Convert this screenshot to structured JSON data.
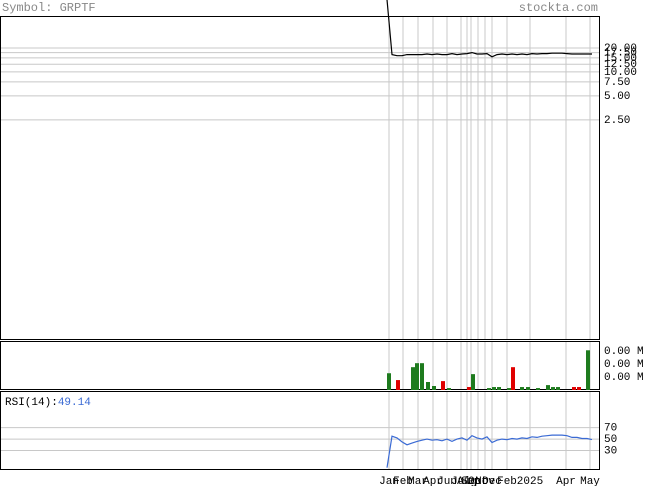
{
  "header": {
    "symbol": "Symbol: GRPTF",
    "site": "stockta.com"
  },
  "chart_data": [
    {
      "type": "line",
      "log_scale": true,
      "color": "#000000",
      "grid": true,
      "x": [
        77.4,
        78.4,
        79.4,
        80.4,
        81.4,
        82.4,
        83.4,
        84.4,
        85.4,
        86.4,
        87.4,
        88.4,
        89.4,
        90.4,
        91.4,
        92.4,
        93.4,
        94.4,
        95.4,
        96.4,
        97.4,
        98.4,
        99.4,
        100.4,
        101.4,
        102.4,
        103.4,
        104.4,
        105.4,
        106.4,
        107.4,
        108.4,
        109.4,
        110.4,
        111.4,
        112.4,
        113.4,
        114.4,
        115.4,
        116.4,
        117.4,
        118.4
      ],
      "values": [
        81,
        16.5,
        16,
        16,
        16.5,
        16.5,
        16.5,
        16.5,
        16.8,
        16.5,
        16.8,
        16.5,
        16.5,
        17,
        16.5,
        16.8,
        17,
        17.5,
        16.8,
        16.8,
        17,
        15.5,
        16.5,
        16.8,
        16.5,
        16.8,
        16.5,
        16.8,
        16.5,
        17,
        16.8,
        17,
        17,
        17.2,
        17.2,
        17.2,
        17,
        16.8,
        16.8,
        16.8,
        16.8,
        16.8
      ],
      "xlim": [
        0,
        120
      ],
      "xticks": [
        {
          "value": 77.8,
          "label": "Jan"
        },
        {
          "value": 80.6,
          "label": "Feb"
        },
        {
          "value": 83.6,
          "label": "Mar"
        },
        {
          "value": 86.6,
          "label": "Apr"
        },
        {
          "value": 89.4,
          "label": "Jun"
        },
        {
          "value": 92.2,
          "label": "Jul"
        },
        {
          "value": 93.4,
          "label": "Aug"
        },
        {
          "value": 94.2,
          "label": "Sep"
        },
        {
          "value": 95.6,
          "label": "Oct"
        },
        {
          "value": 97,
          "label": "Nov"
        },
        {
          "value": 98.4,
          "label": "Dec"
        },
        {
          "value": 101.4,
          "label": "Feb"
        },
        {
          "value": 106,
          "label": "2025"
        },
        {
          "value": 113.2,
          "label": "Apr"
        },
        {
          "value": 118,
          "label": "May"
        }
      ],
      "ylim": [
        0.0043,
        50.4
      ],
      "yticks": [
        {
          "value": 20,
          "label": "20.00"
        },
        {
          "value": 17.5,
          "label": "17.50"
        },
        {
          "value": 15,
          "label": "15.00"
        },
        {
          "value": 12.5,
          "label": "12.50"
        },
        {
          "value": 10,
          "label": "10.00"
        },
        {
          "value": 7.5,
          "label": "7.50"
        },
        {
          "value": 5,
          "label": "5.00"
        },
        {
          "value": 2.5,
          "label": "2.50"
        }
      ]
    },
    {
      "type": "bar",
      "grid": false,
      "x": [
        77.4,
        79.2,
        82.2,
        83,
        84,
        85.2,
        86.4,
        88.2,
        89.4,
        93.4,
        94.2,
        97.4,
        98.4,
        99.4,
        101.4,
        102.2,
        104,
        105.2,
        107.2,
        109.2,
        110.2,
        111.2,
        114.4,
        115.4,
        117.2
      ],
      "values": [
        1300,
        770,
        1770,
        2080,
        2080,
        620,
        310,
        690,
        150,
        230,
        1230,
        150,
        230,
        230,
        150,
        1770,
        230,
        230,
        150,
        380,
        230,
        230,
        230,
        230,
        3080
      ],
      "colors": [
        "#1e7b1e",
        "#e00000",
        "#1e7b1e",
        "#1e7b1e",
        "#1e7b1e",
        "#1e7b1e",
        "#1e7b1e",
        "#e00000",
        "#1e7b1e",
        "#e00000",
        "#1e7b1e",
        "#1e7b1e",
        "#1e7b1e",
        "#1e7b1e",
        "#1e7b1e",
        "#e00000",
        "#1e7b1e",
        "#1e7b1e",
        "#1e7b1e",
        "#1e7b1e",
        "#1e7b1e",
        "#1e7b1e",
        "#e00000",
        "#e00000",
        "#1e7b1e"
      ],
      "xlim": [
        0,
        120
      ],
      "ylim": [
        0,
        3800
      ],
      "yticks": [
        {
          "value": 3000,
          "label": "0.00 M"
        },
        {
          "value": 2000,
          "label": "0.00 M"
        },
        {
          "value": 1000,
          "label": "0.00 M"
        }
      ]
    },
    {
      "type": "line",
      "title": "RSI(14):",
      "color": "#3a6ad4",
      "grid": true,
      "x": [
        77.4,
        78.4,
        79.4,
        80.4,
        81.4,
        82.4,
        83.4,
        84.4,
        85.4,
        86.4,
        87.4,
        88.4,
        89.4,
        90.4,
        91.4,
        92.4,
        93.4,
        94.4,
        95.4,
        96.4,
        97.4,
        98.4,
        99.4,
        100.4,
        101.4,
        102.4,
        103.4,
        104.4,
        105.4,
        106.4,
        107.4,
        108.4,
        109.4,
        110.4,
        111.4,
        112.4,
        113.4,
        114.4,
        115.4,
        116.4,
        117.4,
        118.4
      ],
      "values": [
        0,
        55,
        52,
        45,
        40,
        43,
        46,
        48,
        50,
        48,
        49,
        47,
        50,
        46,
        50,
        52,
        48,
        56,
        52,
        50,
        54,
        44,
        48,
        50,
        49,
        51,
        50,
        52,
        51,
        54,
        53,
        55,
        56,
        57,
        57,
        57,
        56,
        53,
        53,
        51,
        51,
        49.14
      ],
      "xlim": [
        0,
        120
      ],
      "ylim": [
        -4,
        134
      ],
      "yticks": [
        70,
        50,
        30
      ]
    }
  ]
}
